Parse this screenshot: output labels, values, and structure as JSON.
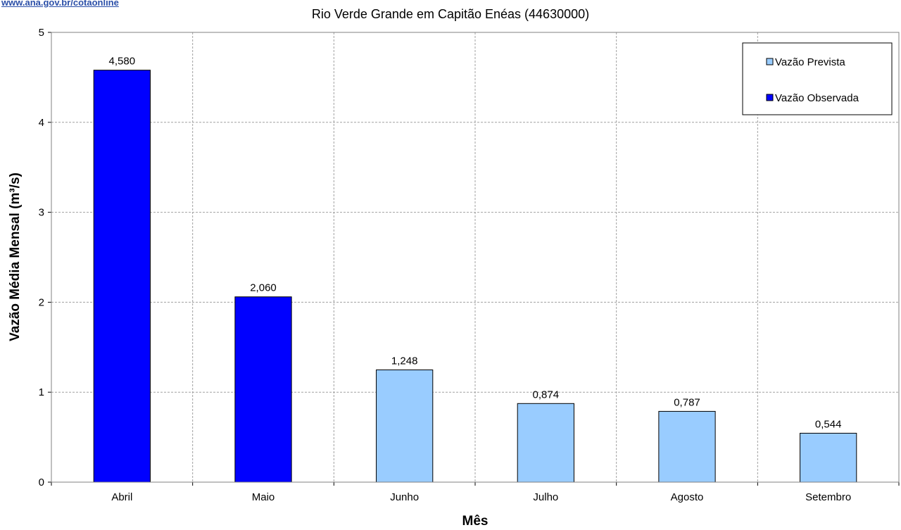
{
  "header": {
    "source_link": "www.ana.gov.br/cotaonline"
  },
  "chart_data": {
    "type": "bar",
    "title": "Rio Verde Grande em Capitão Enéas (44630000)",
    "xlabel": "Mês",
    "ylabel": "Vazão Média Mensal (m³/s)",
    "ylim": [
      0,
      5
    ],
    "yticks": [
      "0",
      "1",
      "2",
      "3",
      "4",
      "5"
    ],
    "grid": true,
    "legend_position": "top-right",
    "categories": [
      "Abril",
      "Maio",
      "Junho",
      "Julho",
      "Agosto",
      "Setembro"
    ],
    "values": [
      4.58,
      2.06,
      1.248,
      0.874,
      0.787,
      0.544
    ],
    "data_labels": [
      "4,580",
      "2,060",
      "1,248",
      "0,874",
      "0,787",
      "0,544"
    ],
    "series_of_bar": [
      "Vazão Observada",
      "Vazão Observada",
      "Vazão Prevista",
      "Vazão Prevista",
      "Vazão Prevista",
      "Vazão Prevista"
    ],
    "series": [
      {
        "name": "Vazão Prevista",
        "color": "#99ccff"
      },
      {
        "name": "Vazão Observada",
        "color": "#0000ff"
      }
    ]
  }
}
